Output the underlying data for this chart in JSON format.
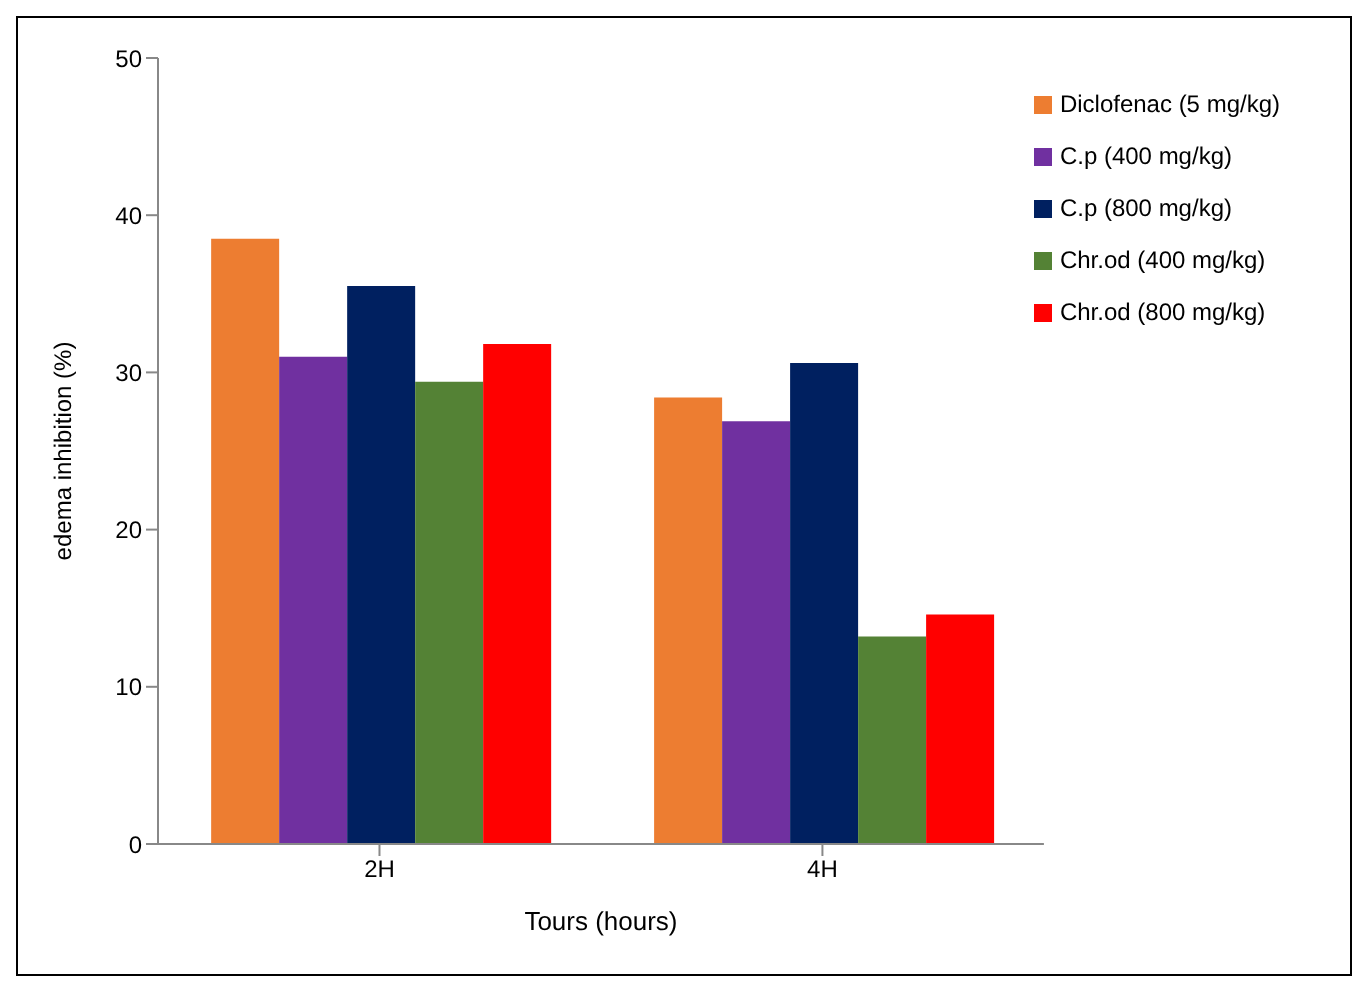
{
  "chart_data": {
    "type": "bar",
    "xlabel": "Tours (hours)",
    "ylabel": "edema inhibition (%)",
    "categories": [
      "2H",
      "4H"
    ],
    "series": [
      {
        "name": "Diclofenac (5 mg/kg)",
        "color": "#ed7d31",
        "values": [
          38.5,
          28.4
        ]
      },
      {
        "name": "C.p (400 mg/kg)",
        "color": "#7030a0",
        "values": [
          31.0,
          26.9
        ]
      },
      {
        "name": "C.p (800 mg/kg)",
        "color": "#002060",
        "values": [
          35.5,
          30.6
        ]
      },
      {
        "name": "Chr.od (400 mg/kg)",
        "color": "#548235",
        "values": [
          29.4,
          13.2
        ]
      },
      {
        "name": "Chr.od (800 mg/kg)",
        "color": "#ff0000",
        "values": [
          31.8,
          14.6
        ]
      }
    ],
    "ylim": [
      0,
      50
    ],
    "yticks": [
      0,
      10,
      20,
      30,
      40,
      50
    ],
    "legend": "top right"
  }
}
